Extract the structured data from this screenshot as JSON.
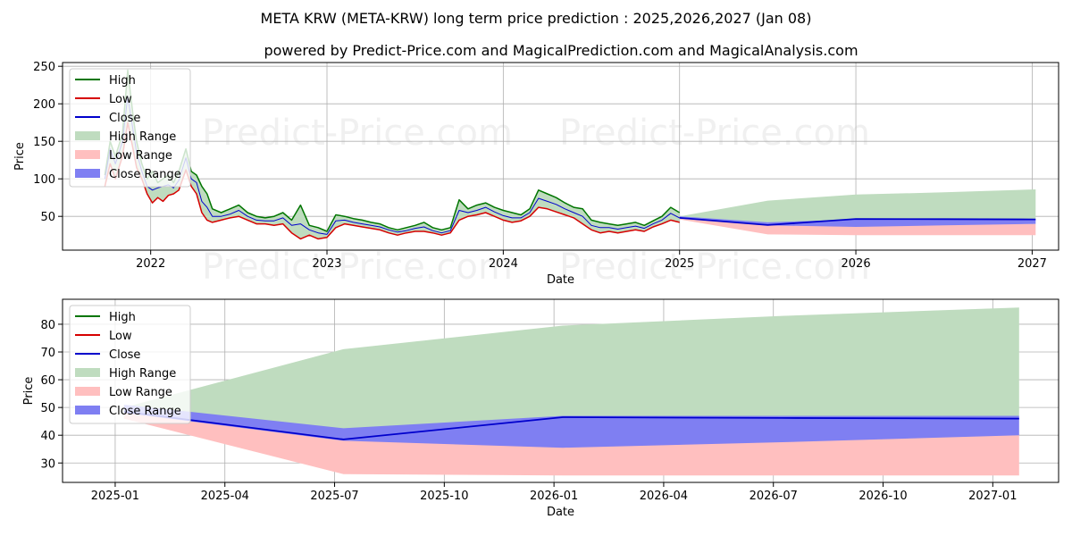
{
  "header": {
    "title": "META KRW (META-KRW) long term price prediction : 2025,2026,2027 (Jan 08)",
    "subtitle": "powered by Predict-Price.com and MagicalPrediction.com and MagicalAnalysis.com"
  },
  "watermark": "Predict-Price.com",
  "colors": {
    "high": "#007500",
    "low": "#d60000",
    "close": "#0000cc",
    "high_range": "#bfdcbf",
    "low_range": "#ffbfbf",
    "close_range": "#7f7ff2"
  },
  "chart_data": [
    {
      "type": "line",
      "name": "history-and-forecast",
      "xlabel": "Date",
      "ylabel": "Price",
      "xlim": [
        2021.5,
        2027.15
      ],
      "ylim": [
        5,
        255
      ],
      "x_ticks": [
        2022,
        2023,
        2024,
        2025,
        2026,
        2027
      ],
      "x_tick_labels": [
        "2022",
        "2023",
        "2024",
        "2025",
        "2026",
        "2027"
      ],
      "y_ticks": [
        50,
        100,
        150,
        200,
        250
      ],
      "y_tick_labels": [
        "50",
        "100",
        "150",
        "200",
        "250"
      ],
      "grid": true,
      "legend_position": "top-left",
      "legend": [
        "High",
        "Low",
        "Close",
        "High Range",
        "Low Range",
        "Close Range"
      ],
      "history": {
        "x": [
          2021.74,
          2021.77,
          2021.8,
          2021.84,
          2021.87,
          2021.9,
          2021.92,
          2021.95,
          2021.98,
          2022.01,
          2022.04,
          2022.07,
          2022.1,
          2022.13,
          2022.16,
          2022.2,
          2022.23,
          2022.26,
          2022.29,
          2022.32,
          2022.35,
          2022.4,
          2022.45,
          2022.5,
          2022.55,
          2022.6,
          2022.65,
          2022.7,
          2022.75,
          2022.8,
          2022.85,
          2022.9,
          2022.95,
          2023.0,
          2023.05,
          2023.1,
          2023.15,
          2023.2,
          2023.25,
          2023.3,
          2023.35,
          2023.4,
          2023.45,
          2023.5,
          2023.55,
          2023.6,
          2023.65,
          2023.7,
          2023.75,
          2023.8,
          2023.85,
          2023.9,
          2023.95,
          2024.0,
          2024.05,
          2024.1,
          2024.15,
          2024.2,
          2024.25,
          2024.3,
          2024.35,
          2024.4,
          2024.45,
          2024.5,
          2024.55,
          2024.6,
          2024.65,
          2024.7,
          2024.75,
          2024.8,
          2024.85,
          2024.9,
          2024.95,
          2025.0
        ],
        "high": [
          105,
          150,
          130,
          160,
          245,
          185,
          150,
          120,
          100,
          110,
          95,
          100,
          105,
          95,
          110,
          140,
          110,
          105,
          90,
          80,
          60,
          55,
          60,
          65,
          55,
          50,
          48,
          50,
          55,
          45,
          65,
          38,
          35,
          30,
          52,
          50,
          47,
          45,
          42,
          40,
          35,
          32,
          35,
          38,
          42,
          35,
          32,
          35,
          72,
          60,
          65,
          68,
          62,
          58,
          55,
          52,
          60,
          85,
          80,
          75,
          68,
          62,
          60,
          45,
          42,
          40,
          38,
          40,
          42,
          38,
          44,
          50,
          62,
          55
        ],
        "low": [
          90,
          120,
          100,
          130,
          175,
          140,
          115,
          100,
          80,
          68,
          75,
          70,
          78,
          80,
          85,
          112,
          90,
          80,
          55,
          45,
          42,
          45,
          48,
          50,
          45,
          40,
          40,
          38,
          40,
          28,
          20,
          25,
          20,
          22,
          35,
          40,
          38,
          36,
          34,
          32,
          28,
          25,
          28,
          30,
          30,
          28,
          25,
          28,
          45,
          50,
          52,
          55,
          50,
          45,
          42,
          44,
          50,
          62,
          60,
          56,
          52,
          48,
          40,
          32,
          28,
          30,
          28,
          30,
          32,
          30,
          36,
          40,
          45,
          42
        ],
        "close": [
          100,
          140,
          120,
          150,
          210,
          165,
          135,
          110,
          90,
          85,
          88,
          90,
          92,
          88,
          98,
          128,
          100,
          95,
          70,
          62,
          50,
          50,
          53,
          58,
          50,
          45,
          44,
          44,
          48,
          38,
          40,
          32,
          28,
          26,
          44,
          45,
          42,
          40,
          38,
          36,
          32,
          29,
          31,
          34,
          36,
          31,
          28,
          31,
          58,
          55,
          58,
          62,
          56,
          51,
          48,
          48,
          55,
          74,
          70,
          66,
          60,
          55,
          50,
          38,
          35,
          35,
          33,
          35,
          37,
          34,
          40,
          45,
          54,
          48
        ]
      },
      "forecast": {
        "x": [
          2025.0,
          2025.5,
          2026.0,
          2026.5,
          2027.02
        ],
        "high_range": {
          "upper": [
            50,
            71,
            79,
            82,
            86
          ],
          "lower": [
            47,
            41,
            40,
            43,
            46
          ]
        },
        "low_range": {
          "upper": [
            47,
            41,
            40,
            40,
            40
          ],
          "lower": [
            46,
            26,
            25,
            25,
            25
          ]
        },
        "close_range": {
          "upper": [
            50,
            42,
            46,
            46,
            46
          ],
          "lower": [
            47,
            38,
            36,
            38,
            40
          ]
        },
        "close": [
          48,
          38.5,
          46.5,
          46.3,
          46
        ]
      }
    },
    {
      "type": "line",
      "name": "forecast-zoom",
      "xlabel": "Date",
      "ylabel": "Price",
      "xlim": [
        2024.88,
        2027.15
      ],
      "ylim": [
        23,
        89
      ],
      "x_ticks": [
        2025.0,
        2025.25,
        2025.5,
        2025.75,
        2026.0,
        2026.25,
        2026.5,
        2026.75,
        2027.0
      ],
      "x_tick_labels": [
        "2025-01",
        "2025-04",
        "2025-07",
        "2025-10",
        "2026-01",
        "2026-04",
        "2026-07",
        "2026-10",
        "2027-01"
      ],
      "y_ticks": [
        30,
        40,
        50,
        60,
        70,
        80
      ],
      "y_tick_labels": [
        "30",
        "40",
        "50",
        "60",
        "70",
        "80"
      ],
      "grid": true,
      "legend_position": "top-left",
      "legend": [
        "High",
        "Low",
        "Close",
        "High Range",
        "Low Range",
        "Close Range"
      ],
      "forecast": {
        "x": [
          2025.02,
          2025.52,
          2026.02,
          2026.52,
          2027.06
        ],
        "high_range": {
          "upper": [
            50,
            71,
            79.5,
            83,
            86
          ],
          "lower": [
            46,
            42,
            44,
            46,
            47
          ]
        },
        "low_range": {
          "upper": [
            48,
            42,
            44,
            42,
            40
          ],
          "lower": [
            46,
            26,
            25.5,
            25.5,
            25.5
          ]
        },
        "close_range": {
          "upper": [
            51,
            42.5,
            47,
            47,
            47
          ],
          "lower": [
            48,
            38,
            35.5,
            37.5,
            40
          ]
        },
        "close": [
          48.5,
          38.5,
          46.5,
          46.2,
          46
        ]
      }
    }
  ]
}
